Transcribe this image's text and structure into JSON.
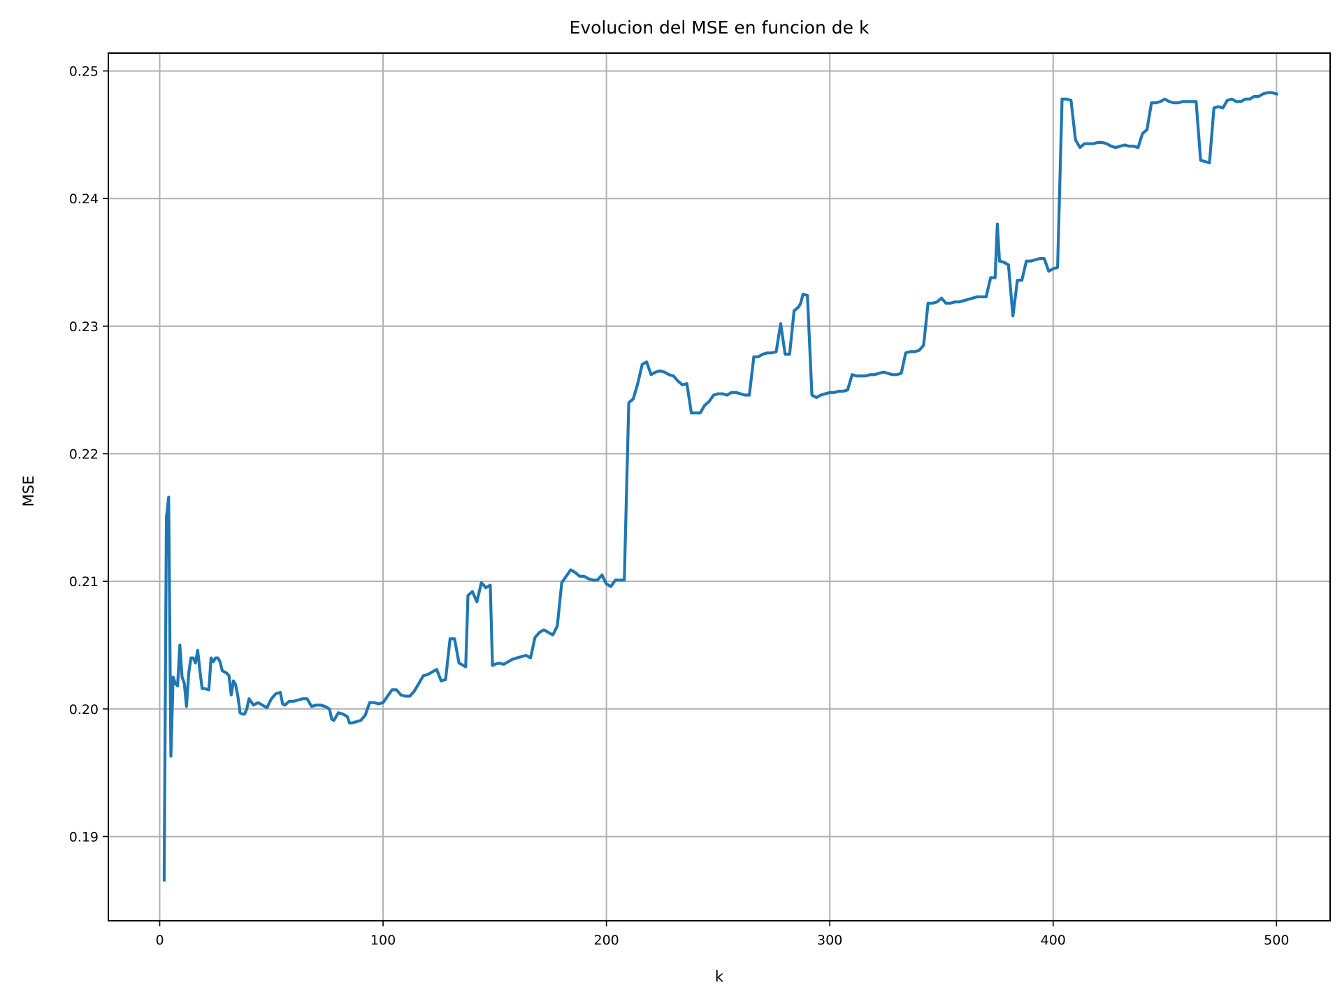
{
  "chart_data": {
    "type": "line",
    "title": "Evolucion del MSE en funcion de k",
    "xlabel": "k",
    "ylabel": "MSE",
    "xlim": [
      -23,
      524
    ],
    "ylim": [
      0.1834,
      0.2514
    ],
    "xticks": [
      0,
      100,
      200,
      300,
      400,
      500
    ],
    "xtick_labels": [
      "0",
      "100",
      "200",
      "300",
      "400",
      "500"
    ],
    "yticks": [
      0.19,
      0.2,
      0.21,
      0.22,
      0.23,
      0.24,
      0.25
    ],
    "ytick_labels": [
      "0.19",
      "0.20",
      "0.21",
      "0.22",
      "0.23",
      "0.24",
      "0.25"
    ],
    "grid": true,
    "line_color": "#1f77b4",
    "series": [
      {
        "x": [
          2,
          3,
          4,
          5,
          6,
          7,
          8,
          9,
          10,
          11,
          12,
          13,
          14,
          15,
          16,
          17,
          18,
          19,
          20,
          22,
          23,
          24,
          25,
          26,
          27,
          28,
          29,
          30,
          31,
          32,
          33,
          34,
          35,
          36,
          37,
          38,
          39,
          40,
          42,
          44,
          46,
          48,
          50,
          52,
          54,
          55,
          56,
          58,
          60,
          62,
          64,
          66,
          68,
          70,
          72,
          74,
          76,
          77,
          78,
          80,
          82,
          84,
          85,
          86,
          88,
          90,
          92,
          94,
          96,
          98,
          100,
          102,
          104,
          106,
          108,
          110,
          112,
          114,
          116,
          118,
          120,
          122,
          124,
          126,
          128,
          130,
          132,
          134,
          136,
          137,
          138,
          140,
          142,
          144,
          146,
          148,
          149,
          150,
          152,
          154,
          156,
          158,
          160,
          162,
          164,
          166,
          168,
          170,
          172,
          174,
          176,
          178,
          180,
          182,
          184,
          186,
          188,
          190,
          192,
          194,
          196,
          198,
          200,
          202,
          204,
          206,
          208,
          210,
          212,
          214,
          216,
          218,
          220,
          222,
          224,
          226,
          228,
          230,
          232,
          234,
          236,
          238,
          240,
          242,
          244,
          246,
          248,
          250,
          252,
          254,
          256,
          258,
          260,
          262,
          264,
          266,
          268,
          270,
          272,
          274,
          276,
          278,
          280,
          282,
          284,
          286,
          287,
          288,
          290,
          292,
          294,
          296,
          298,
          300,
          302,
          304,
          306,
          308,
          310,
          312,
          314,
          316,
          318,
          320,
          322,
          324,
          326,
          328,
          330,
          332,
          334,
          336,
          338,
          340,
          342,
          344,
          346,
          348,
          350,
          352,
          354,
          356,
          358,
          360,
          362,
          364,
          366,
          368,
          370,
          372,
          374,
          375,
          376,
          378,
          380,
          382,
          384,
          386,
          388,
          390,
          392,
          394,
          396,
          398,
          400,
          402,
          404,
          406,
          408,
          410,
          412,
          414,
          416,
          418,
          420,
          422,
          424,
          426,
          428,
          430,
          432,
          434,
          436,
          438,
          440,
          442,
          444,
          446,
          448,
          450,
          452,
          454,
          456,
          458,
          460,
          462,
          464,
          466,
          468,
          470,
          472,
          474,
          476,
          478,
          480,
          482,
          484,
          486,
          488,
          490,
          492,
          494,
          496,
          498,
          500
        ],
        "y": [
          0.1866,
          0.215,
          0.2166,
          0.1963,
          0.2025,
          0.202,
          0.2018,
          0.205,
          0.2025,
          0.202,
          0.2002,
          0.2028,
          0.204,
          0.204,
          0.2036,
          0.2046,
          0.203,
          0.2016,
          0.2016,
          0.2015,
          0.204,
          0.2037,
          0.204,
          0.204,
          0.2037,
          0.203,
          0.2029,
          0.2028,
          0.2026,
          0.2011,
          0.2022,
          0.2019,
          0.201,
          0.1997,
          0.1996,
          0.1996,
          0.2,
          0.2008,
          0.2003,
          0.2005,
          0.2003,
          0.2001,
          0.2008,
          0.2012,
          0.2013,
          0.2004,
          0.2003,
          0.2006,
          0.2006,
          0.2007,
          0.2008,
          0.2008,
          0.2002,
          0.2003,
          0.2003,
          0.2002,
          0.2,
          0.1992,
          0.1991,
          0.1997,
          0.1996,
          0.1994,
          0.1989,
          0.1989,
          0.199,
          0.1991,
          0.1995,
          0.2005,
          0.2005,
          0.2004,
          0.2005,
          0.201,
          0.2015,
          0.2015,
          0.2011,
          0.201,
          0.201,
          0.2014,
          0.202,
          0.2026,
          0.2027,
          0.2029,
          0.2031,
          0.2022,
          0.2023,
          0.2055,
          0.2055,
          0.2036,
          0.2034,
          0.2033,
          0.2089,
          0.2092,
          0.2084,
          0.2099,
          0.2095,
          0.2097,
          0.2034,
          0.2035,
          0.2036,
          0.2035,
          0.2037,
          0.2039,
          0.204,
          0.2041,
          0.2042,
          0.204,
          0.2056,
          0.206,
          0.2062,
          0.206,
          0.2058,
          0.2065,
          0.2099,
          0.2104,
          0.2109,
          0.2107,
          0.2104,
          0.2104,
          0.2102,
          0.2101,
          0.2101,
          0.2105,
          0.2098,
          0.2096,
          0.2101,
          0.2101,
          0.2101,
          0.224,
          0.2243,
          0.2255,
          0.227,
          0.2272,
          0.2262,
          0.2264,
          0.2265,
          0.2264,
          0.2262,
          0.2261,
          0.2257,
          0.2254,
          0.2255,
          0.2232,
          0.2232,
          0.2232,
          0.2238,
          0.2241,
          0.2246,
          0.2247,
          0.2247,
          0.2246,
          0.2248,
          0.2248,
          0.2247,
          0.2246,
          0.2246,
          0.2276,
          0.2276,
          0.2278,
          0.2279,
          0.2279,
          0.228,
          0.2302,
          0.2278,
          0.2278,
          0.2312,
          0.2315,
          0.2318,
          0.2325,
          0.2324,
          0.2246,
          0.2244,
          0.2246,
          0.2247,
          0.2248,
          0.2248,
          0.2249,
          0.2249,
          0.225,
          0.2262,
          0.2261,
          0.2261,
          0.2261,
          0.2262,
          0.2262,
          0.2263,
          0.2264,
          0.2263,
          0.2262,
          0.2262,
          0.2263,
          0.2279,
          0.228,
          0.228,
          0.2281,
          0.2285,
          0.2318,
          0.2318,
          0.2319,
          0.2322,
          0.2318,
          0.2318,
          0.2319,
          0.2319,
          0.232,
          0.2321,
          0.2322,
          0.2323,
          0.2323,
          0.2323,
          0.2338,
          0.2338,
          0.238,
          0.2351,
          0.235,
          0.2348,
          0.2308,
          0.2336,
          0.2336,
          0.2351,
          0.2351,
          0.2352,
          0.2353,
          0.2353,
          0.2343,
          0.2345,
          0.2346,
          0.2478,
          0.2478,
          0.2477,
          0.2446,
          0.244,
          0.2443,
          0.2443,
          0.2443,
          0.2444,
          0.2444,
          0.2443,
          0.2441,
          0.244,
          0.2441,
          0.2442,
          0.2441,
          0.2441,
          0.244,
          0.2451,
          0.2454,
          0.2475,
          0.2475,
          0.2476,
          0.2478,
          0.2476,
          0.2475,
          0.2475,
          0.2476,
          0.2476,
          0.2476,
          0.2476,
          0.243,
          0.2429,
          0.2428,
          0.2471,
          0.2472,
          0.2471,
          0.2477,
          0.2478,
          0.2476,
          0.2476,
          0.2478,
          0.2478,
          0.248,
          0.248,
          0.2482,
          0.2483,
          0.2483,
          0.2482
        ]
      }
    ]
  }
}
